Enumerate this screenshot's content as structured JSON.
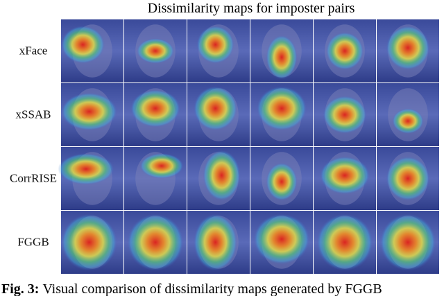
{
  "figure": {
    "title": "Dissimilarity maps for imposter pairs",
    "rows": [
      "xFace",
      "xSSAB",
      "CorrRISE",
      "FGGB"
    ],
    "caption": {
      "label": "Fig. 3:",
      "text": "Visual comparison of dissimilarity maps generated by FGGB"
    }
  }
}
